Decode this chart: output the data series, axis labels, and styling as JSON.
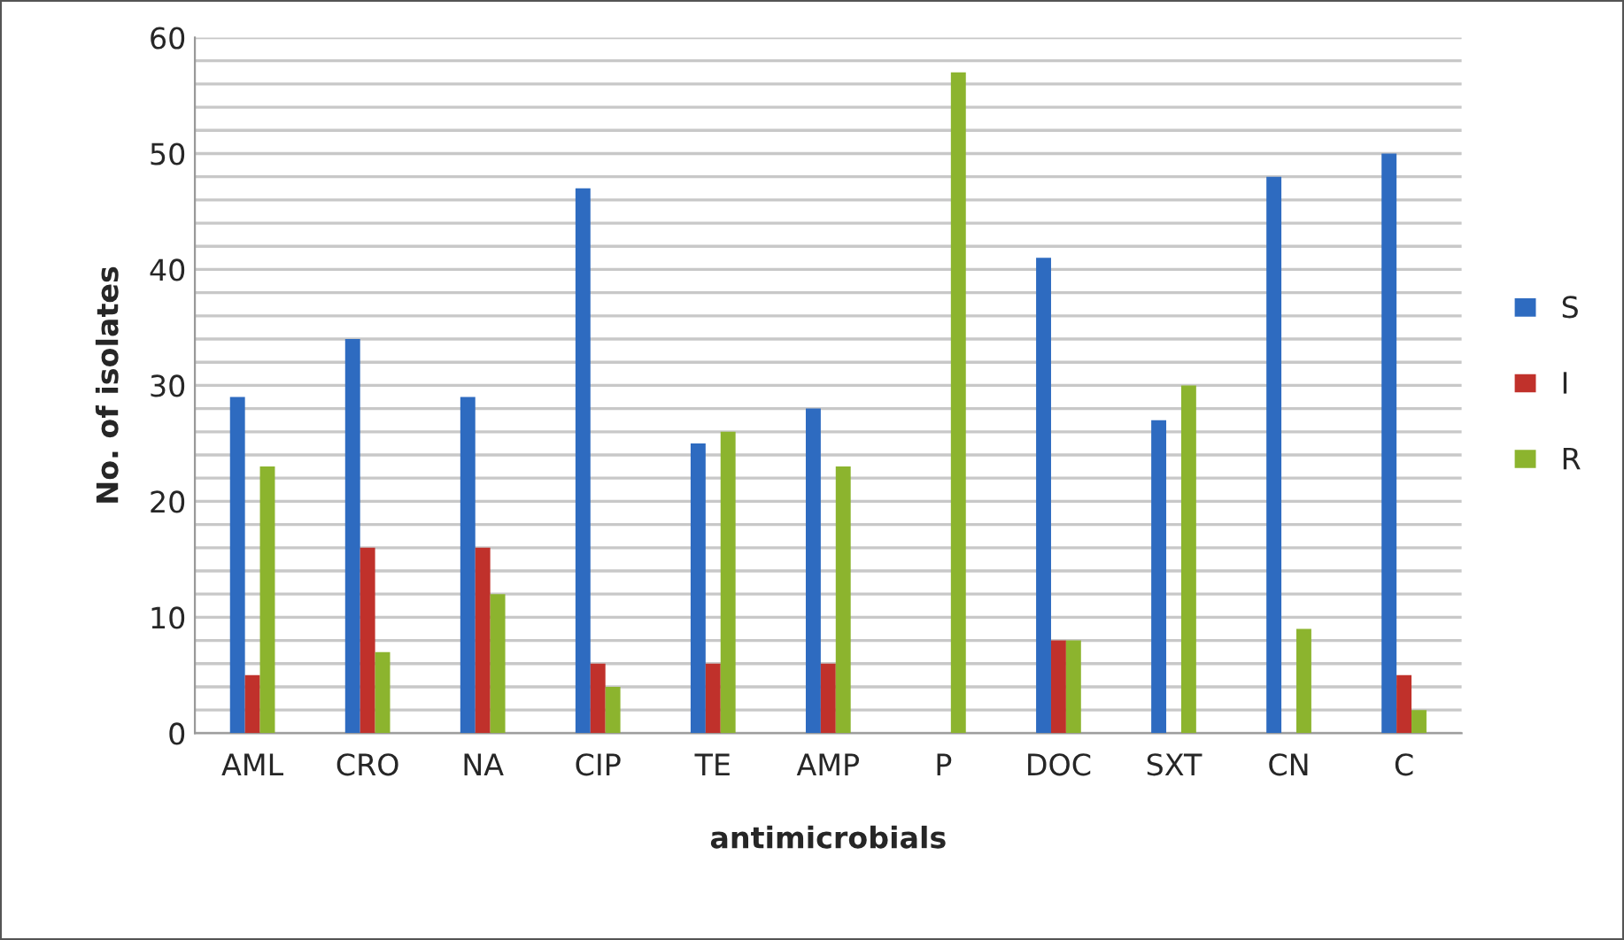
{
  "chart_data": {
    "type": "bar",
    "xlabel": "antimicrobials",
    "ylabel": "No. of isolates",
    "categories": [
      "AML",
      "CRO",
      "NA",
      "CIP",
      "TE",
      "AMP",
      "P",
      "DOC",
      "SXT",
      "CN",
      "C"
    ],
    "series": [
      {
        "name": "S",
        "color": "#2e6bc0",
        "values": [
          29,
          34,
          29,
          47,
          25,
          28,
          0,
          41,
          27,
          48,
          50
        ]
      },
      {
        "name": "I",
        "color": "#c0312b",
        "values": [
          5,
          16,
          16,
          6,
          6,
          6,
          0,
          8,
          0,
          0,
          5
        ]
      },
      {
        "name": "R",
        "color": "#8cb42e",
        "values": [
          23,
          7,
          12,
          4,
          26,
          23,
          57,
          8,
          30,
          9,
          2
        ]
      }
    ],
    "ylim": [
      0,
      60
    ],
    "yticks": [
      0,
      {
        "value": 2,
        "label": null
      },
      {
        "value": 4,
        "label": null
      },
      {
        "value": 6,
        "label": null
      },
      {
        "value": 8,
        "label": null
      },
      10,
      {
        "value": 12,
        "label": null
      },
      {
        "value": 14,
        "label": null
      },
      {
        "value": 16,
        "label": null
      },
      {
        "value": 18,
        "label": null
      },
      20,
      {
        "value": 22,
        "label": null
      },
      {
        "value": 24,
        "label": null
      },
      {
        "value": 26,
        "label": null
      },
      {
        "value": 28,
        "label": null
      },
      30,
      {
        "value": 32,
        "label": null
      },
      {
        "value": 34,
        "label": null
      },
      {
        "value": 36,
        "label": null
      },
      {
        "value": 38,
        "label": null
      },
      40,
      {
        "value": 42,
        "label": null
      },
      {
        "value": 44,
        "label": null
      },
      {
        "value": 46,
        "label": null
      },
      {
        "value": 48,
        "label": null
      },
      50,
      {
        "value": 52,
        "label": null
      },
      {
        "value": 54,
        "label": null
      },
      {
        "value": 56,
        "label": null
      },
      {
        "value": 58,
        "label": null
      },
      60
    ],
    "grid": "y",
    "legend": "right"
  }
}
